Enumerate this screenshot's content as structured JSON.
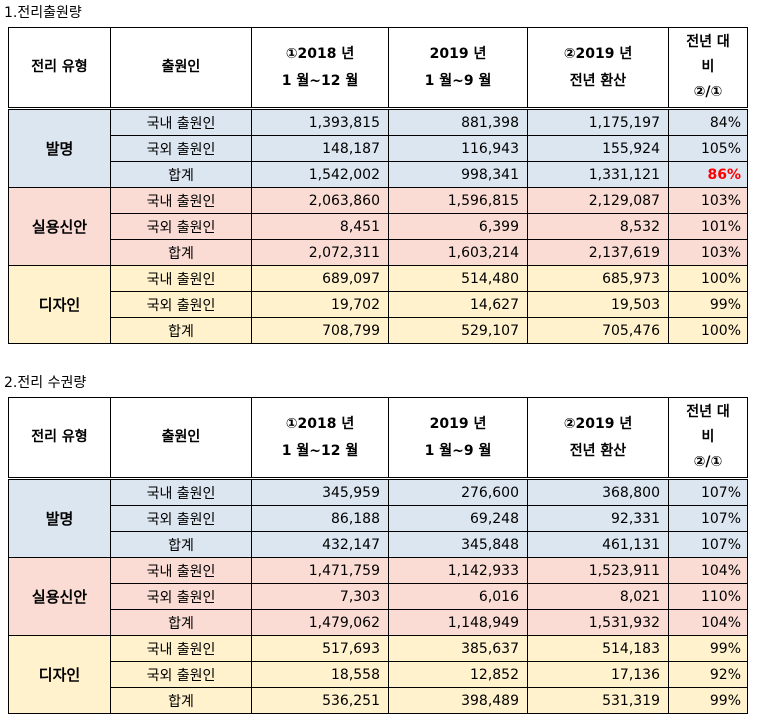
{
  "sections": [
    {
      "title": "1.전리출원량",
      "headers": {
        "type": "전리 유형",
        "applicant": "출원인",
        "col2018": [
          "①2018 년",
          "1 월~12 월"
        ],
        "col2019": [
          "2019 년",
          "1 월~9 월"
        ],
        "colConv": [
          "②2019 년",
          "전년 환산"
        ],
        "colRatio": [
          "전년 대",
          "비",
          "②/①"
        ]
      },
      "groups": [
        {
          "type": "발명",
          "rows": [
            {
              "applicant": "국내 출원인",
              "v2018": "1,393,815",
              "v2019": "881,398",
              "conv": "1,175,197",
              "ratio": "84%"
            },
            {
              "applicant": "국외 출원인",
              "v2018": "148,187",
              "v2019": "116,943",
              "conv": "155,924",
              "ratio": "105%"
            },
            {
              "applicant": "합계",
              "v2018": "1,542,002",
              "v2019": "998,341",
              "conv": "1,331,121",
              "ratio": "86%",
              "highlight": true
            }
          ]
        },
        {
          "type": "실용신안",
          "rows": [
            {
              "applicant": "국내 출원인",
              "v2018": "2,063,860",
              "v2019": "1,596,815",
              "conv": "2,129,087",
              "ratio": "103%"
            },
            {
              "applicant": "국외 출원인",
              "v2018": "8,451",
              "v2019": "6,399",
              "conv": "8,532",
              "ratio": "101%"
            },
            {
              "applicant": "합계",
              "v2018": "2,072,311",
              "v2019": "1,603,214",
              "conv": "2,137,619",
              "ratio": "103%"
            }
          ]
        },
        {
          "type": "디자인",
          "rows": [
            {
              "applicant": "국내 출원인",
              "v2018": "689,097",
              "v2019": "514,480",
              "conv": "685,973",
              "ratio": "100%"
            },
            {
              "applicant": "국외 출원인",
              "v2018": "19,702",
              "v2019": "14,627",
              "conv": "19,503",
              "ratio": "99%"
            },
            {
              "applicant": "합계",
              "v2018": "708,799",
              "v2019": "529,107",
              "conv": "705,476",
              "ratio": "100%"
            }
          ]
        }
      ]
    },
    {
      "title": "2.전리 수권량",
      "headers": {
        "type": "전리 유형",
        "applicant": "출원인",
        "col2018": [
          "①2018 년",
          "1 월~12 월"
        ],
        "col2019": [
          "2019 년",
          "1 월~9 월"
        ],
        "colConv": [
          "②2019 년",
          "전년 환산"
        ],
        "colRatio": [
          "전년 대",
          "비",
          "②/①"
        ]
      },
      "groups": [
        {
          "type": "발명",
          "rows": [
            {
              "applicant": "국내 출원인",
              "v2018": "345,959",
              "v2019": "276,600",
              "conv": "368,800",
              "ratio": "107%"
            },
            {
              "applicant": "국외 출원인",
              "v2018": "86,188",
              "v2019": "69,248",
              "conv": "92,331",
              "ratio": "107%"
            },
            {
              "applicant": "합계",
              "v2018": "432,147",
              "v2019": "345,848",
              "conv": "461,131",
              "ratio": "107%"
            }
          ]
        },
        {
          "type": "실용신안",
          "rows": [
            {
              "applicant": "국내 출원인",
              "v2018": "1,471,759",
              "v2019": "1,142,933",
              "conv": "1,523,911",
              "ratio": "104%"
            },
            {
              "applicant": "국외 출원인",
              "v2018": "7,303",
              "v2019": "6,016",
              "conv": "8,021",
              "ratio": "110%"
            },
            {
              "applicant": "합계",
              "v2018": "1,479,062",
              "v2019": "1,148,949",
              "conv": "1,531,932",
              "ratio": "104%"
            }
          ]
        },
        {
          "type": "디자인",
          "rows": [
            {
              "applicant": "국내 출원인",
              "v2018": "517,693",
              "v2019": "385,637",
              "conv": "514,183",
              "ratio": "99%"
            },
            {
              "applicant": "국외 출원인",
              "v2018": "18,558",
              "v2019": "12,852",
              "conv": "17,136",
              "ratio": "92%"
            },
            {
              "applicant": "합계",
              "v2018": "536,251",
              "v2019": "398,489",
              "conv": "531,319",
              "ratio": "99%"
            }
          ]
        }
      ]
    }
  ]
}
